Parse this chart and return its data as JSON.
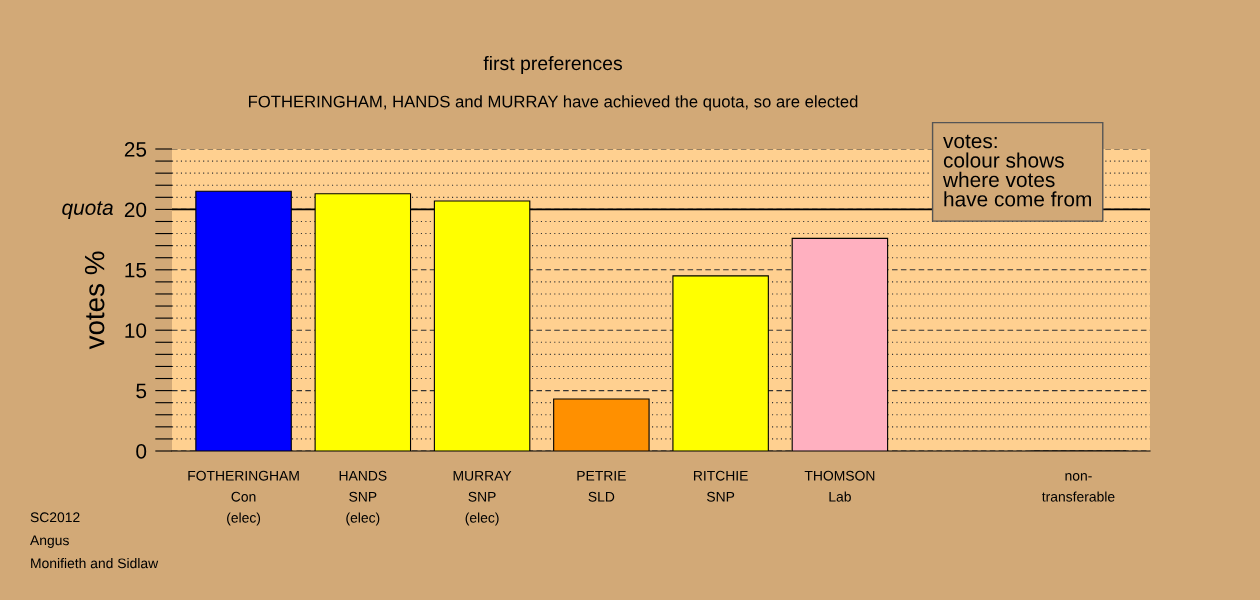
{
  "chart_data": {
    "type": "bar",
    "title": "first preferences",
    "subtitle": "FOTHERINGHAM, HANDS and MURRAY have achieved the quota, so are elected",
    "ylabel": "votes %",
    "categories": [
      "FOTHERINGHAM\nCon\n(elec)",
      "HANDS\nSNP\n(elec)",
      "MURRAY\nSNP\n(elec)",
      "PETRIE\nSLD",
      "RITCHIE\nSNP",
      "THOMSON\nLab",
      null,
      "non-\ntransferable"
    ],
    "values": [
      21.5,
      21.3,
      20.7,
      4.3,
      14.5,
      17.6,
      null,
      0
    ],
    "colors": [
      "#0000ff",
      "#ffff00",
      "#ffff00",
      "#ff9000",
      "#ffff00",
      "#ffb0c0",
      "#ffff00",
      "#ffff00"
    ],
    "ylim": [
      0,
      25
    ],
    "yticks": [
      0,
      {
        "value": 1,
        "label": null
      },
      {
        "value": 2,
        "label": null
      },
      {
        "value": 3,
        "label": null
      },
      {
        "value": 4,
        "label": null
      },
      5,
      {
        "value": 6,
        "label": null
      },
      {
        "value": 7,
        "label": null
      },
      {
        "value": 8,
        "label": null
      },
      {
        "value": 9,
        "label": null
      },
      10,
      {
        "value": 11,
        "label": null
      },
      {
        "value": 12,
        "label": null
      },
      {
        "value": 13,
        "label": null
      },
      {
        "value": 14,
        "label": null
      },
      15,
      {
        "value": 16,
        "label": null
      },
      {
        "value": 17,
        "label": null
      },
      {
        "value": 18,
        "label": null
      },
      {
        "value": 19,
        "label": null
      },
      20,
      {
        "value": 21,
        "label": null
      },
      {
        "value": 22,
        "label": null
      },
      {
        "value": 23,
        "label": null
      },
      {
        "value": 24,
        "label": null
      },
      25
    ],
    "grid": "y",
    "ref_lines": [
      {
        "axis": "y",
        "value": 20,
        "label": "quota"
      }
    ],
    "annotations": [
      "votes:\ncolour shows\nwhere votes\nhave come from",
      "SC2012\nAngus\nMonifieth and Sidlaw"
    ]
  }
}
